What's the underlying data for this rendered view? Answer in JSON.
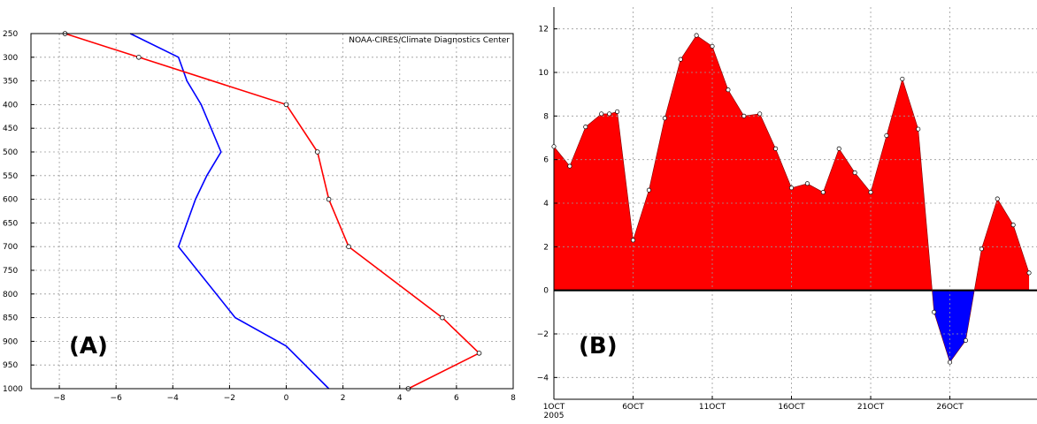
{
  "chart_data": [
    {
      "type": "line",
      "panel_label": "(A)",
      "annotation": "NOAA-CIRES/Climate Diagnostics Center",
      "x_ticks": [
        "-8",
        "-6",
        "-4",
        "-2",
        "0",
        "2",
        "4",
        "6",
        "8"
      ],
      "xlim": [
        -9,
        8
      ],
      "y_ticks": [
        "250",
        "300",
        "350",
        "400",
        "450",
        "500",
        "550",
        "600",
        "650",
        "700",
        "750",
        "800",
        "850",
        "900",
        "950",
        "1000"
      ],
      "ylim": [
        250,
        1000
      ],
      "y_inverted": true,
      "grid": true,
      "series": [
        {
          "color": "#0000ff",
          "markers": false,
          "points": [
            [
              -5.5,
              250
            ],
            [
              -3.8,
              300
            ],
            [
              -3.5,
              350
            ],
            [
              -3.0,
              400
            ],
            [
              -2.3,
              500
            ],
            [
              -2.8,
              550
            ],
            [
              -3.2,
              600
            ],
            [
              -3.8,
              700
            ],
            [
              -1.8,
              850
            ],
            [
              0,
              910
            ],
            [
              1.5,
              1000
            ]
          ]
        },
        {
          "color": "#ff0000",
          "markers": true,
          "points": [
            [
              -7.8,
              250
            ],
            [
              -5.2,
              300
            ],
            [
              0,
              400
            ],
            [
              1.1,
              500
            ],
            [
              1.5,
              600
            ],
            [
              2.2,
              700
            ],
            [
              5.5,
              850
            ],
            [
              6.8,
              925
            ],
            [
              4.3,
              1000
            ]
          ]
        }
      ]
    },
    {
      "type": "area",
      "panel_label": "(B)",
      "x_ticks": [
        {
          "day": 1,
          "label": "1OCT",
          "sub": "2005"
        },
        {
          "day": 6,
          "label": "6OCT"
        },
        {
          "day": 11,
          "label": "11OCT"
        },
        {
          "day": 16,
          "label": "16OCT"
        },
        {
          "day": 21,
          "label": "21OCT"
        },
        {
          "day": 26,
          "label": "26OCT"
        }
      ],
      "xlim": [
        1,
        31.5
      ],
      "y_ticks": [
        "-4",
        "-2",
        "0",
        "2",
        "4",
        "6",
        "8",
        "10",
        "12"
      ],
      "ylim": [
        -5,
        13
      ],
      "grid": true,
      "positive_color": "#ff0000",
      "negative_color": "#0000ff",
      "values": [
        [
          1,
          6.6
        ],
        [
          2,
          5.7
        ],
        [
          3,
          7.5
        ],
        [
          4,
          8.1
        ],
        [
          4.5,
          8.1
        ],
        [
          5,
          8.2
        ],
        [
          6,
          2.3
        ],
        [
          7,
          4.6
        ],
        [
          8,
          7.9
        ],
        [
          9,
          10.6
        ],
        [
          10,
          11.7
        ],
        [
          11,
          11.2
        ],
        [
          12,
          9.2
        ],
        [
          13,
          8.0
        ],
        [
          14,
          8.1
        ],
        [
          15,
          6.5
        ],
        [
          16,
          4.7
        ],
        [
          17,
          4.9
        ],
        [
          18,
          4.5
        ],
        [
          19,
          6.5
        ],
        [
          20,
          5.4
        ],
        [
          21,
          4.5
        ],
        [
          22,
          7.1
        ],
        [
          23,
          9.7
        ],
        [
          24,
          7.4
        ],
        [
          25,
          -1.0
        ],
        [
          26,
          -3.3
        ],
        [
          27,
          -2.3
        ],
        [
          28,
          1.9
        ],
        [
          29,
          4.2
        ],
        [
          30,
          3.0
        ],
        [
          31,
          0.8
        ]
      ]
    }
  ]
}
